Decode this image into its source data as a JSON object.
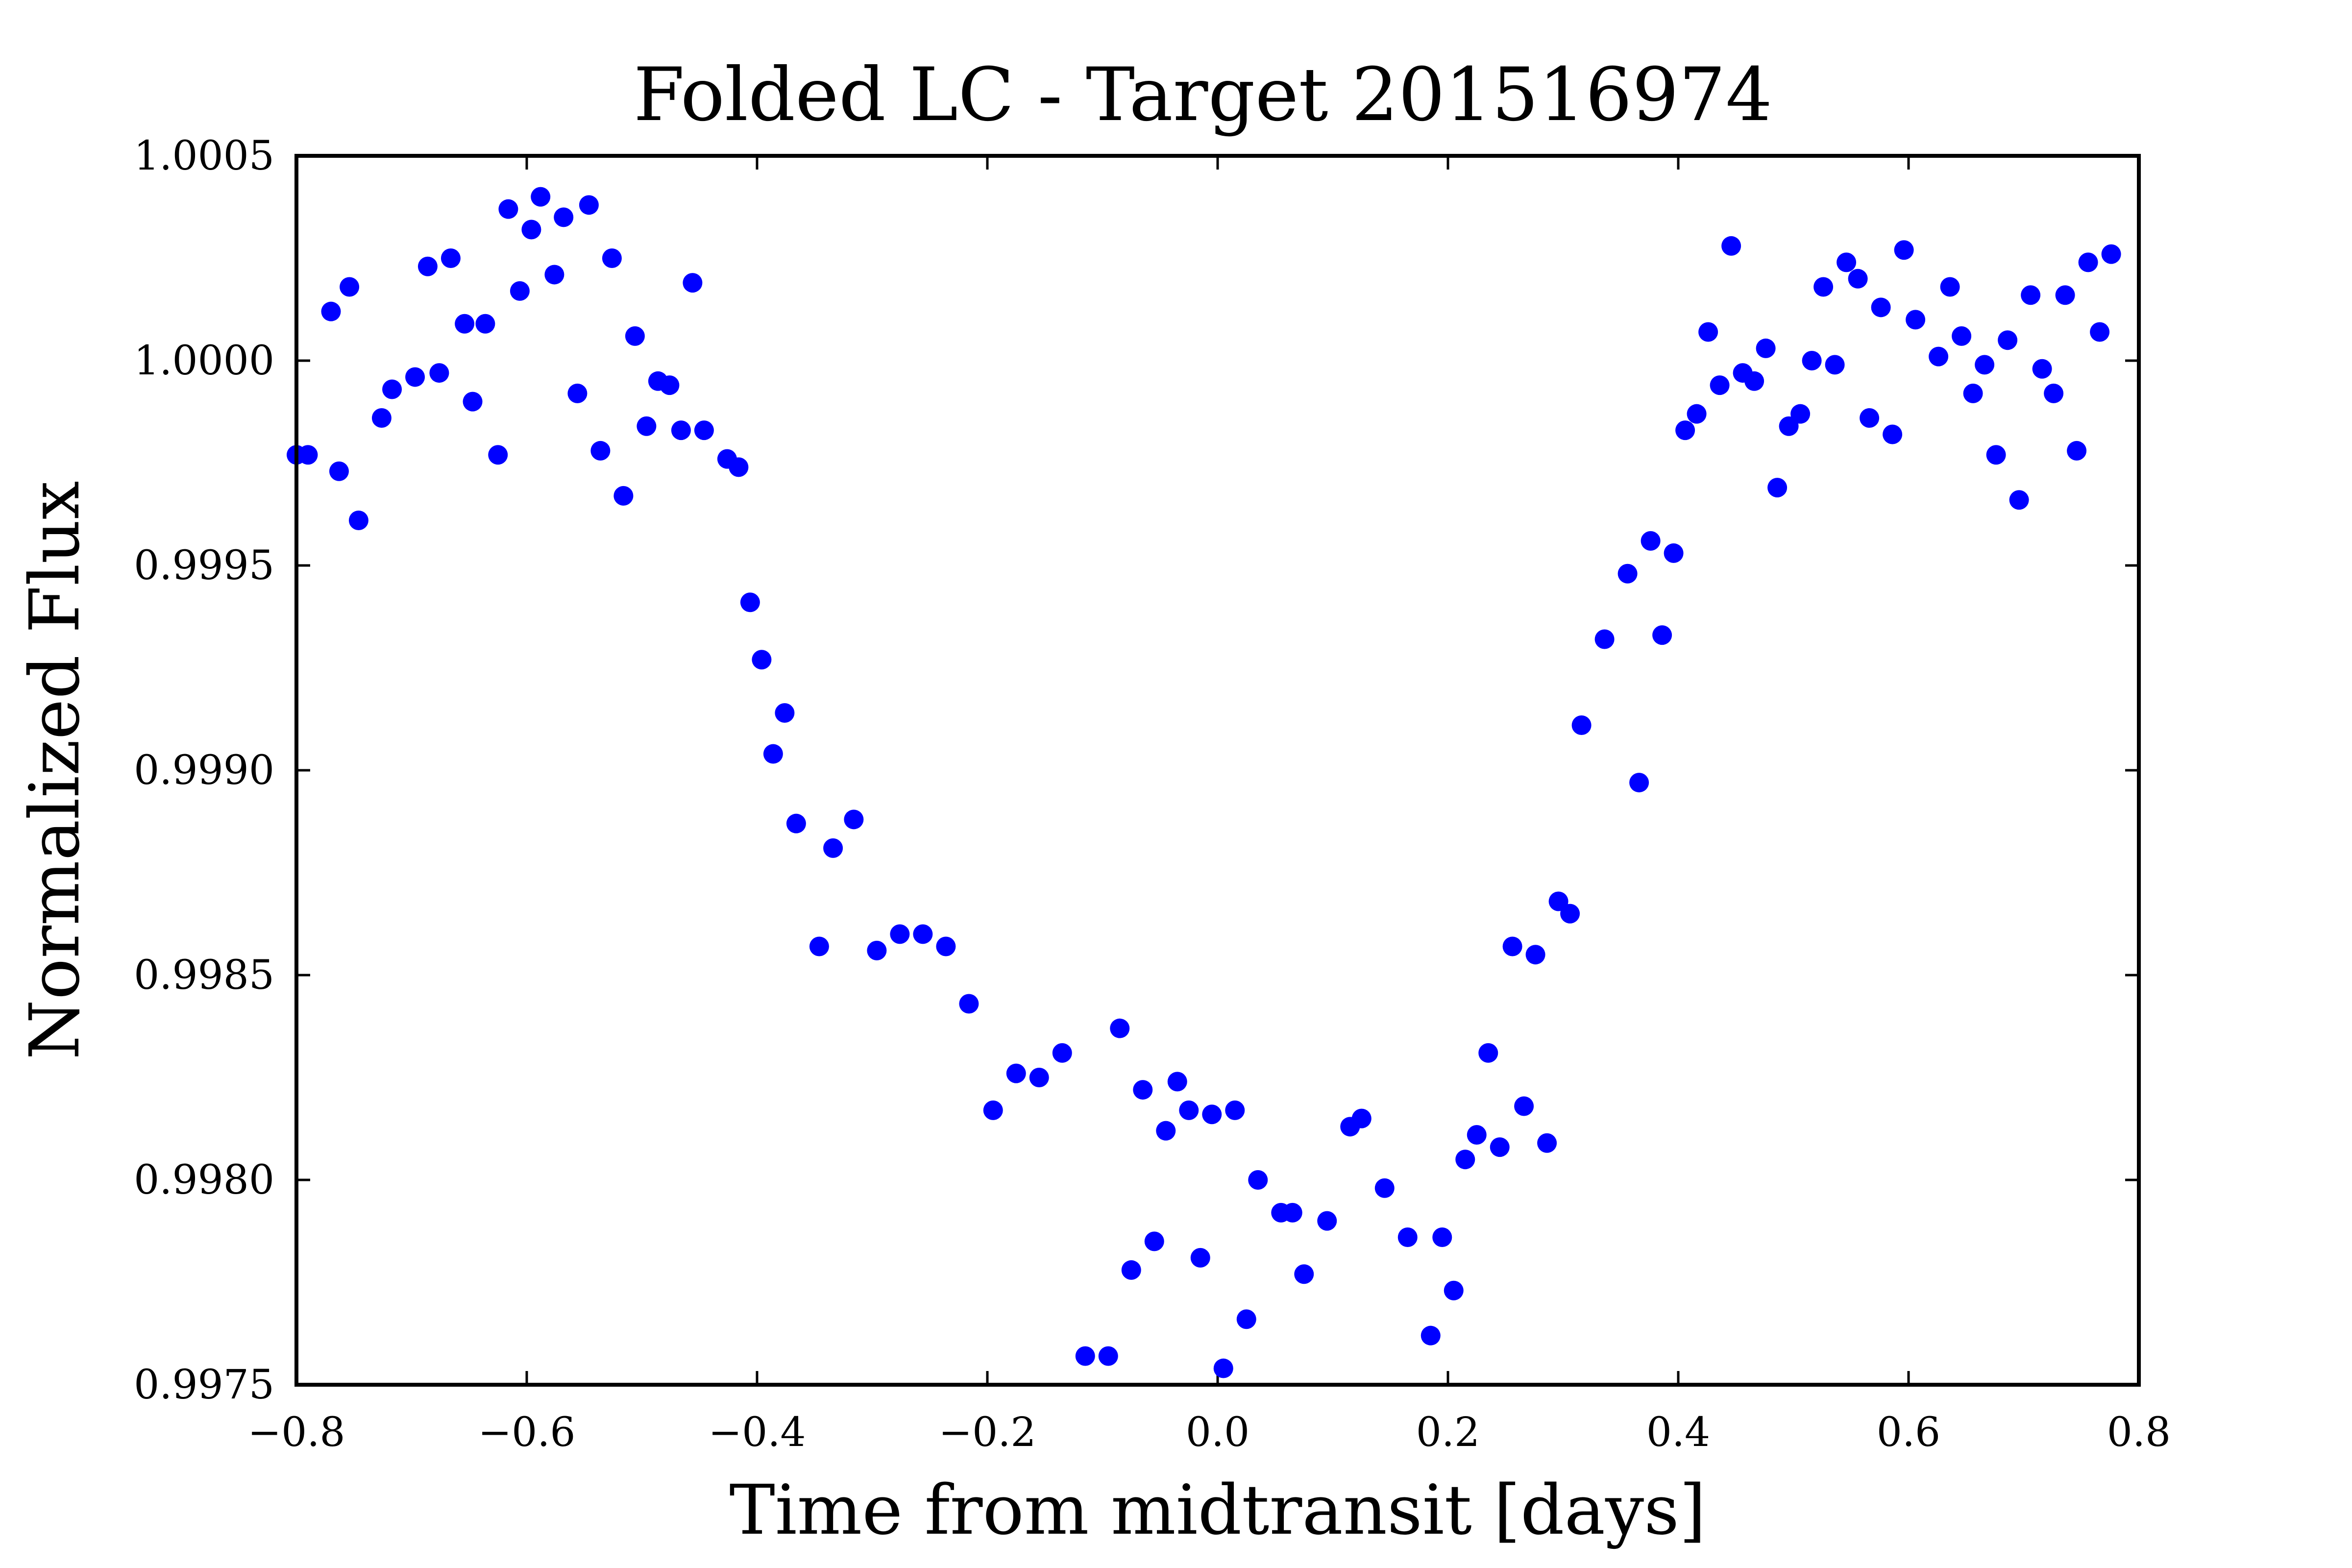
{
  "chart_data": {
    "type": "scatter",
    "title": "Folded LC - Target 201516974",
    "xlabel": "Time from midtransit [days]",
    "ylabel": "Normalized Flux",
    "xlim": [
      -0.8,
      0.8
    ],
    "ylim": [
      0.9975,
      1.0005
    ],
    "xticks": [
      -0.8,
      -0.6,
      -0.4,
      -0.2,
      0.0,
      0.2,
      0.4,
      0.6,
      0.8
    ],
    "xtick_labels": [
      "−0.8",
      "−0.6",
      "−0.4",
      "−0.2",
      "0.0",
      "0.2",
      "0.4",
      "0.6",
      "0.8"
    ],
    "yticks": [
      0.9975,
      0.998,
      0.9985,
      0.999,
      0.9995,
      1.0,
      1.0005
    ],
    "ytick_labels": [
      "0.9975",
      "0.9980",
      "0.9985",
      "0.9990",
      "0.9995",
      "1.0000",
      "1.0005"
    ],
    "grid": false,
    "marker_color": "#0000ff",
    "series": [
      {
        "points": [
          [
            -0.8,
            0.99977
          ],
          [
            -0.79,
            0.99977
          ],
          [
            -0.77,
            1.00012
          ],
          [
            -0.763,
            0.99973
          ],
          [
            -0.754,
            1.00018
          ],
          [
            -0.746,
            0.99961
          ],
          [
            -0.726,
            0.99986
          ],
          [
            -0.717,
            0.99993
          ],
          [
            -0.697,
            0.99996
          ],
          [
            -0.686,
            1.00023
          ],
          [
            -0.676,
            0.99997
          ],
          [
            -0.666,
            1.00025
          ],
          [
            -0.654,
            1.00009
          ],
          [
            -0.647,
            0.9999
          ],
          [
            -0.636,
            1.00009
          ],
          [
            -0.625,
            0.99977
          ],
          [
            -0.616,
            1.00037
          ],
          [
            -0.606,
            1.00017
          ],
          [
            -0.596,
            1.00032
          ],
          [
            -0.588,
            1.0004
          ],
          [
            -0.576,
            1.00021
          ],
          [
            -0.568,
            1.00035
          ],
          [
            -0.556,
            0.99992
          ],
          [
            -0.546,
            1.00038
          ],
          [
            -0.536,
            0.99978
          ],
          [
            -0.526,
            1.00025
          ],
          [
            -0.516,
            0.99967
          ],
          [
            -0.506,
            1.00006
          ],
          [
            -0.496,
            0.99984
          ],
          [
            -0.486,
            0.99995
          ],
          [
            -0.476,
            0.99994
          ],
          [
            -0.466,
            0.99983
          ],
          [
            -0.456,
            1.00019
          ],
          [
            -0.446,
            0.99983
          ],
          [
            -0.426,
            0.99976
          ],
          [
            -0.416,
            0.99974
          ],
          [
            -0.406,
            0.99941
          ],
          [
            -0.396,
            0.99927
          ],
          [
            -0.386,
            0.99904
          ],
          [
            -0.376,
            0.99914
          ],
          [
            -0.366,
            0.99887
          ],
          [
            -0.346,
            0.99857
          ],
          [
            -0.334,
            0.99881
          ],
          [
            -0.316,
            0.99888
          ],
          [
            -0.296,
            0.99856
          ],
          [
            -0.276,
            0.9986
          ],
          [
            -0.256,
            0.9986
          ],
          [
            -0.236,
            0.99857
          ],
          [
            -0.216,
            0.99843
          ],
          [
            -0.195,
            0.99817
          ],
          [
            -0.175,
            0.99826
          ],
          [
            -0.155,
            0.99825
          ],
          [
            -0.135,
            0.99831
          ],
          [
            -0.115,
            0.99757
          ],
          [
            -0.095,
            0.99757
          ],
          [
            -0.085,
            0.99837
          ],
          [
            -0.075,
            0.99778
          ],
          [
            -0.065,
            0.99822
          ],
          [
            -0.055,
            0.99785
          ],
          [
            -0.045,
            0.99812
          ],
          [
            -0.035,
            0.99824
          ],
          [
            -0.025,
            0.99817
          ],
          [
            -0.015,
            0.99781
          ],
          [
            -0.005,
            0.99816
          ],
          [
            0.005,
            0.99754
          ],
          [
            0.015,
            0.99817
          ],
          [
            0.025,
            0.99766
          ],
          [
            0.035,
            0.998
          ],
          [
            0.055,
            0.99792
          ],
          [
            0.065,
            0.99792
          ],
          [
            0.075,
            0.99777
          ],
          [
            0.095,
            0.9979
          ],
          [
            0.115,
            0.99813
          ],
          [
            0.125,
            0.99815
          ],
          [
            0.145,
            0.99798
          ],
          [
            0.165,
            0.99786
          ],
          [
            0.185,
            0.99762
          ],
          [
            0.195,
            0.99786
          ],
          [
            0.205,
            0.99773
          ],
          [
            0.215,
            0.99805
          ],
          [
            0.225,
            0.99811
          ],
          [
            0.235,
            0.99831
          ],
          [
            0.245,
            0.99808
          ],
          [
            0.256,
            0.99857
          ],
          [
            0.266,
            0.99818
          ],
          [
            0.276,
            0.99855
          ],
          [
            0.286,
            0.99809
          ],
          [
            0.296,
            0.99868
          ],
          [
            0.306,
            0.99865
          ],
          [
            0.316,
            0.99911
          ],
          [
            0.336,
            0.99932
          ],
          [
            0.356,
            0.99948
          ],
          [
            0.366,
            0.99897
          ],
          [
            0.376,
            0.99956
          ],
          [
            0.386,
            0.99933
          ],
          [
            0.396,
            0.99953
          ],
          [
            0.406,
            0.99983
          ],
          [
            0.416,
            0.99987
          ],
          [
            0.426,
            1.00007
          ],
          [
            0.436,
            0.99994
          ],
          [
            0.446,
            1.00028
          ],
          [
            0.456,
            0.99997
          ],
          [
            0.466,
            0.99995
          ],
          [
            0.476,
            1.00003
          ],
          [
            0.486,
            0.99969
          ],
          [
            0.496,
            0.99984
          ],
          [
            0.506,
            0.99987
          ],
          [
            0.516,
            1.0
          ],
          [
            0.526,
            1.00018
          ],
          [
            0.536,
            0.99999
          ],
          [
            0.546,
            1.00024
          ],
          [
            0.556,
            1.0002
          ],
          [
            0.566,
            0.99986
          ],
          [
            0.576,
            1.00013
          ],
          [
            0.586,
            0.99982
          ],
          [
            0.596,
            1.00027
          ],
          [
            0.606,
            1.0001
          ],
          [
            0.626,
            1.00001
          ],
          [
            0.636,
            1.00018
          ],
          [
            0.646,
            1.00006
          ],
          [
            0.656,
            0.99992
          ],
          [
            0.666,
            0.99999
          ],
          [
            0.676,
            0.99977
          ],
          [
            0.686,
            1.00005
          ],
          [
            0.696,
            0.99966
          ],
          [
            0.706,
            1.00016
          ],
          [
            0.716,
            0.99998
          ],
          [
            0.726,
            0.99992
          ],
          [
            0.736,
            1.00016
          ],
          [
            0.746,
            0.99978
          ],
          [
            0.756,
            1.00024
          ],
          [
            0.766,
            1.00007
          ],
          [
            0.776,
            1.00026
          ]
        ]
      }
    ]
  }
}
